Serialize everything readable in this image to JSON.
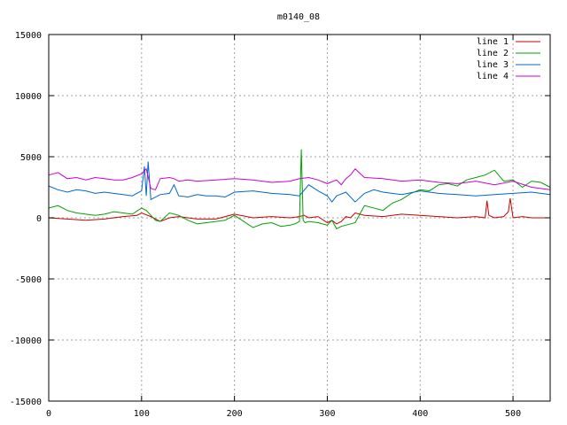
{
  "chart_data": {
    "type": "line",
    "title": "m0140_08",
    "xlabel": "",
    "ylabel": "",
    "xlim": [
      0,
      540
    ],
    "ylim": [
      -15000,
      15000
    ],
    "x_ticks": [
      0,
      100,
      200,
      300,
      400,
      500
    ],
    "y_ticks": [
      -15000,
      -10000,
      -5000,
      0,
      5000,
      10000,
      15000
    ],
    "grid": true,
    "legend_position": "top-right",
    "series": [
      {
        "name": "line 1",
        "color": "#cc0000",
        "x": [
          0,
          20,
          40,
          60,
          80,
          95,
          100,
          110,
          120,
          130,
          140,
          150,
          160,
          180,
          200,
          220,
          240,
          260,
          270,
          275,
          280,
          290,
          300,
          305,
          310,
          315,
          320,
          325,
          330,
          340,
          360,
          380,
          400,
          420,
          440,
          460,
          470,
          472,
          474,
          480,
          490,
          495,
          497,
          500,
          510,
          520,
          540
        ],
        "y": [
          0,
          -100,
          -200,
          -100,
          100,
          200,
          400,
          100,
          -300,
          0,
          100,
          0,
          -100,
          -100,
          300,
          0,
          100,
          0,
          100,
          200,
          0,
          100,
          -400,
          -200,
          -500,
          -300,
          100,
          0,
          400,
          200,
          100,
          300,
          200,
          100,
          0,
          100,
          0,
          1400,
          200,
          0,
          100,
          500,
          1600,
          0,
          100,
          0,
          0
        ]
      },
      {
        "name": "line 2",
        "color": "#00a000",
        "x": [
          0,
          10,
          20,
          30,
          40,
          50,
          60,
          70,
          80,
          90,
          100,
          105,
          110,
          115,
          120,
          130,
          140,
          150,
          160,
          170,
          180,
          190,
          200,
          210,
          220,
          230,
          240,
          250,
          260,
          265,
          270,
          272,
          274,
          276,
          280,
          290,
          300,
          305,
          310,
          315,
          320,
          330,
          340,
          360,
          370,
          380,
          390,
          400,
          410,
          420,
          430,
          440,
          450,
          460,
          470,
          480,
          490,
          500,
          510,
          520,
          530,
          540
        ],
        "y": [
          800,
          1000,
          600,
          400,
          300,
          200,
          300,
          500,
          400,
          300,
          800,
          600,
          200,
          -200,
          -300,
          400,
          200,
          -200,
          -500,
          -400,
          -300,
          -200,
          200,
          -300,
          -800,
          -500,
          -400,
          -700,
          -600,
          -500,
          -300,
          5600,
          -200,
          -400,
          -300,
          -400,
          -600,
          -200,
          -900,
          -700,
          -600,
          -400,
          1000,
          600,
          1200,
          1500,
          2000,
          2300,
          2200,
          2700,
          2800,
          2600,
          3100,
          3300,
          3500,
          3900,
          3000,
          3100,
          2500,
          3000,
          2900,
          2500
        ]
      },
      {
        "name": "line 3",
        "color": "#0066cc",
        "x": [
          0,
          10,
          20,
          30,
          40,
          50,
          60,
          70,
          80,
          90,
          100,
          103,
          105,
          107,
          110,
          120,
          130,
          135,
          140,
          150,
          160,
          170,
          180,
          190,
          200,
          220,
          240,
          260,
          270,
          280,
          290,
          300,
          305,
          310,
          320,
          330,
          340,
          350,
          360,
          380,
          400,
          420,
          440,
          460,
          480,
          500,
          520,
          540
        ],
        "y": [
          2600,
          2300,
          2100,
          2300,
          2200,
          2000,
          2100,
          2000,
          1900,
          1800,
          2200,
          4200,
          1800,
          4600,
          1500,
          1900,
          2000,
          2700,
          1800,
          1700,
          1900,
          1800,
          1800,
          1700,
          2100,
          2200,
          2000,
          1900,
          1800,
          2700,
          2200,
          1800,
          1300,
          1800,
          2100,
          1300,
          2000,
          2300,
          2100,
          1900,
          2200,
          2000,
          1900,
          1800,
          1900,
          2000,
          2100,
          1900
        ]
      },
      {
        "name": "line 4",
        "color": "#cc00cc",
        "x": [
          0,
          10,
          20,
          30,
          40,
          50,
          60,
          70,
          80,
          90,
          100,
          105,
          110,
          115,
          120,
          130,
          135,
          140,
          150,
          160,
          180,
          200,
          220,
          240,
          260,
          270,
          280,
          290,
          300,
          310,
          315,
          320,
          325,
          330,
          340,
          360,
          380,
          400,
          420,
          440,
          460,
          480,
          500,
          520,
          540
        ],
        "y": [
          3500,
          3700,
          3200,
          3300,
          3100,
          3300,
          3200,
          3100,
          3100,
          3300,
          3600,
          4000,
          2400,
          2300,
          3200,
          3300,
          3200,
          3000,
          3100,
          3000,
          3100,
          3200,
          3100,
          2900,
          3000,
          3200,
          3300,
          3100,
          2800,
          3100,
          2700,
          3200,
          3500,
          4000,
          3300,
          3200,
          3000,
          3100,
          2900,
          2800,
          3000,
          2700,
          3000,
          2500,
          2300
        ]
      }
    ]
  }
}
